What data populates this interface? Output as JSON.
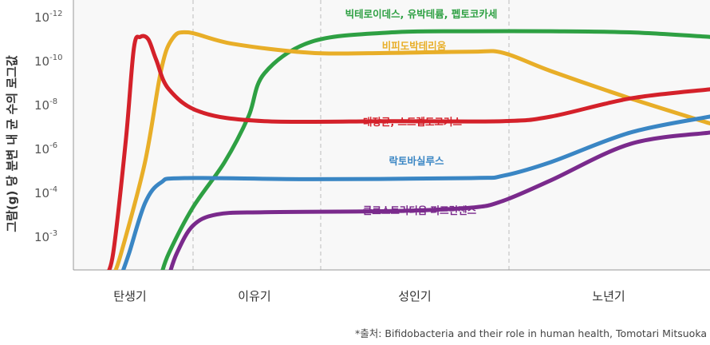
{
  "chart_data": {
    "type": "line",
    "title": "",
    "ylabel": "그람(g) 당 분변 내 균 수의 로그값",
    "yscale": "log",
    "y_ticks": [
      {
        "base": "10",
        "exp": "-12"
      },
      {
        "base": "10",
        "exp": "-10"
      },
      {
        "base": "10",
        "exp": "-8"
      },
      {
        "base": "10",
        "exp": "-6"
      },
      {
        "base": "10",
        "exp": "-4"
      },
      {
        "base": "10",
        "exp": "-3"
      }
    ],
    "x_stages": [
      "탄생기",
      "이유기",
      "성인기",
      "노년기"
    ],
    "grid": "vertical dashed separators between stages",
    "series": [
      {
        "name": "빅테로이데스, 유박테륨, 펩토코카세",
        "color": "#2ea043",
        "points": [
          [
            0.55,
            -1
          ],
          [
            0.6,
            0
          ],
          [
            0.75,
            2
          ],
          [
            0.95,
            4
          ],
          [
            1.1,
            6
          ],
          [
            1.2,
            7.9
          ],
          [
            1.5,
            9.3
          ],
          [
            2.0,
            9.7
          ],
          [
            2.5,
            9.75
          ],
          [
            3.0,
            9.75
          ],
          [
            3.5,
            9.7
          ],
          [
            4.0,
            9.5
          ]
        ]
      },
      {
        "name": "비피도박테리움",
        "color": "#e8ae28",
        "points": [
          [
            0.25,
            -1
          ],
          [
            0.3,
            0
          ],
          [
            0.45,
            4
          ],
          [
            0.55,
            8
          ],
          [
            0.62,
            9.4
          ],
          [
            0.72,
            9.7
          ],
          [
            1.0,
            9.2
          ],
          [
            1.5,
            8.8
          ],
          [
            2.0,
            8.8
          ],
          [
            2.5,
            8.85
          ],
          [
            2.7,
            8.8
          ],
          [
            3.0,
            8
          ],
          [
            3.5,
            6.8
          ],
          [
            4.0,
            5.7
          ]
        ]
      },
      {
        "name": "대장균, 스트렙토코커스",
        "color": "#d4212a",
        "points": [
          [
            0.2,
            -1
          ],
          [
            0.25,
            0
          ],
          [
            0.33,
            5
          ],
          [
            0.38,
            9
          ],
          [
            0.42,
            9.5
          ],
          [
            0.47,
            9.4
          ],
          [
            0.52,
            8.5
          ],
          [
            0.6,
            7.2
          ],
          [
            0.8,
            6.2
          ],
          [
            1.2,
            5.8
          ],
          [
            2.0,
            5.8
          ],
          [
            2.7,
            5.8
          ],
          [
            3.0,
            6.0
          ],
          [
            3.5,
            6.8
          ],
          [
            4.0,
            7.2
          ]
        ]
      },
      {
        "name": "락토바실루스",
        "color": "#3a86c4",
        "points": [
          [
            0.3,
            -1
          ],
          [
            0.35,
            0
          ],
          [
            0.45,
            2.2
          ],
          [
            0.55,
            3.1
          ],
          [
            0.7,
            3.3
          ],
          [
            1.5,
            3.25
          ],
          [
            2.5,
            3.3
          ],
          [
            2.7,
            3.4
          ],
          [
            3.0,
            4.0
          ],
          [
            3.5,
            5.3
          ],
          [
            4.0,
            6.0
          ]
        ]
      },
      {
        "name": "클로스트리디움 퍼프린젠스",
        "color": "#7a2a8c",
        "points": [
          [
            0.6,
            -1
          ],
          [
            0.65,
            0
          ],
          [
            0.75,
            1.2
          ],
          [
            0.9,
            1.7
          ],
          [
            1.2,
            1.8
          ],
          [
            2.0,
            1.85
          ],
          [
            2.5,
            2.0
          ],
          [
            2.7,
            2.3
          ],
          [
            3.0,
            3.2
          ],
          [
            3.5,
            4.8
          ],
          [
            4.0,
            5.3
          ]
        ]
      }
    ]
  },
  "source": "*출처: Bifidobacteria and their role in human health, Tomotari Mitsuoka"
}
